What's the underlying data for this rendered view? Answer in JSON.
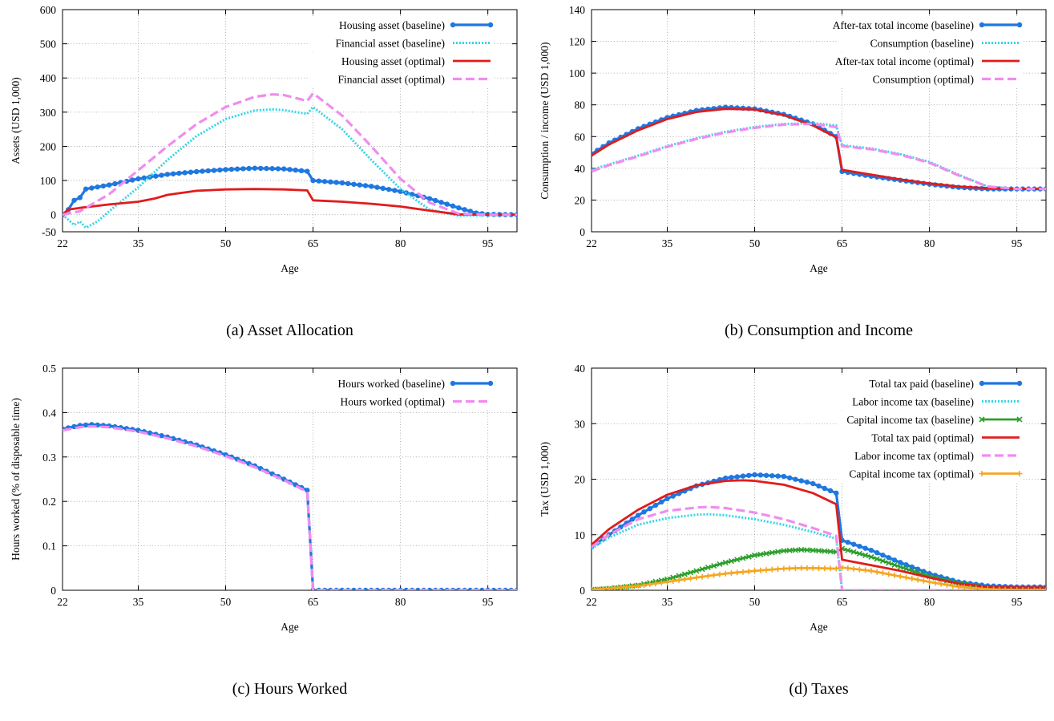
{
  "chart_data": [
    {
      "id": "a",
      "type": "line",
      "caption": "(a)  Asset Allocation",
      "xlabel": "Age",
      "ylabel": "Assets (USD 1,000)",
      "xlim": [
        22,
        100
      ],
      "ylim": [
        -50,
        600
      ],
      "xticks": [
        22,
        35,
        50,
        65,
        80,
        95
      ],
      "yticks": [
        -50,
        0,
        100,
        200,
        300,
        400,
        500,
        600
      ],
      "legend_position": "top-right",
      "grid": true,
      "series": [
        {
          "name": "Housing asset (baseline)",
          "color": "#1f77e0",
          "style": "solid-dots",
          "x": [
            22,
            23,
            24,
            25,
            26,
            30,
            35,
            40,
            45,
            50,
            55,
            60,
            64,
            65,
            70,
            75,
            80,
            85,
            90,
            93,
            95,
            100
          ],
          "y": [
            0,
            15,
            42,
            50,
            75,
            87,
            105,
            118,
            126,
            132,
            136,
            134,
            127,
            100,
            93,
            83,
            68,
            47,
            20,
            5,
            1,
            0
          ]
        },
        {
          "name": "Financial asset (baseline)",
          "color": "#33d6e6",
          "style": "dotted",
          "x": [
            22,
            23,
            24,
            25,
            26,
            28,
            30,
            35,
            40,
            45,
            50,
            55,
            58,
            60,
            64,
            65,
            70,
            75,
            80,
            85,
            90,
            95,
            100
          ],
          "y": [
            0,
            -15,
            -30,
            -20,
            -38,
            -20,
            10,
            80,
            160,
            230,
            280,
            305,
            308,
            306,
            295,
            315,
            250,
            160,
            75,
            15,
            -3,
            -2,
            0
          ]
        },
        {
          "name": "Housing asset (optimal)",
          "color": "#e21b1b",
          "style": "solid",
          "x": [
            22,
            23,
            25,
            30,
            35,
            38,
            40,
            45,
            50,
            55,
            60,
            64,
            65,
            70,
            75,
            80,
            85,
            90,
            95,
            100
          ],
          "y": [
            0,
            15,
            20,
            30,
            38,
            48,
            58,
            70,
            74,
            75,
            74,
            71,
            42,
            38,
            32,
            24,
            12,
            1,
            0,
            0
          ]
        },
        {
          "name": "Financial asset (optimal)",
          "color": "#f08cf0",
          "style": "dashed",
          "x": [
            22,
            25,
            30,
            35,
            40,
            45,
            50,
            55,
            58,
            60,
            64,
            65,
            70,
            75,
            80,
            85,
            90,
            95,
            100
          ],
          "y": [
            0,
            10,
            60,
            130,
            200,
            265,
            315,
            345,
            352,
            350,
            333,
            355,
            290,
            200,
            105,
            35,
            3,
            0,
            0
          ]
        }
      ]
    },
    {
      "id": "b",
      "type": "line",
      "caption": "(b)  Consumption and Income",
      "xlabel": "Age",
      "ylabel": "Consumption / income (USD 1,000)",
      "xlim": [
        22,
        100
      ],
      "ylim": [
        0,
        140
      ],
      "xticks": [
        22,
        35,
        50,
        65,
        80,
        95
      ],
      "yticks": [
        0,
        20,
        40,
        60,
        80,
        100,
        120,
        140
      ],
      "legend_position": "top-right",
      "grid": true,
      "series": [
        {
          "name": "After-tax total income (baseline)",
          "color": "#1f77e0",
          "style": "solid-dots",
          "x": [
            22,
            25,
            30,
            35,
            40,
            45,
            50,
            55,
            60,
            64,
            65,
            70,
            75,
            80,
            85,
            90,
            95,
            100
          ],
          "y": [
            49,
            56,
            65,
            72,
            76.5,
            78.5,
            77.5,
            74,
            68,
            60,
            38,
            35,
            32.5,
            30,
            28,
            27,
            27,
            27
          ]
        },
        {
          "name": "Consumption (baseline)",
          "color": "#33d6e6",
          "style": "dotted",
          "x": [
            22,
            25,
            30,
            35,
            40,
            45,
            50,
            55,
            60,
            64,
            65,
            70,
            75,
            80,
            85,
            90,
            95,
            100
          ],
          "y": [
            39,
            42.5,
            48,
            54,
            59,
            63,
            66,
            68,
            68.5,
            67,
            54.5,
            52.5,
            49,
            44,
            36,
            28.5,
            27,
            27
          ]
        },
        {
          "name": "After-tax total income (optimal)",
          "color": "#e21b1b",
          "style": "solid",
          "x": [
            22,
            25,
            30,
            35,
            40,
            45,
            50,
            55,
            60,
            64,
            65,
            70,
            75,
            80,
            85,
            90,
            95,
            100
          ],
          "y": [
            48,
            55,
            64,
            71,
            75.5,
            77.5,
            77,
            73.5,
            67,
            59.5,
            39,
            36,
            33,
            30.5,
            28.5,
            27.5,
            27,
            27
          ]
        },
        {
          "name": "Consumption (optimal)",
          "color": "#f08cf0",
          "style": "dashed",
          "x": [
            22,
            25,
            30,
            35,
            40,
            45,
            50,
            55,
            60,
            64,
            65,
            70,
            75,
            80,
            85,
            90,
            95,
            100
          ],
          "y": [
            38,
            42,
            47.5,
            53.5,
            58.5,
            62.5,
            65.5,
            67.5,
            68,
            66,
            54,
            52,
            48.5,
            43.5,
            35.5,
            28.5,
            27,
            27
          ]
        }
      ]
    },
    {
      "id": "c",
      "type": "line",
      "caption": "(c)  Hours Worked",
      "xlabel": "Age",
      "ylabel": "Hours worked (% of disposable time)",
      "xlim": [
        22,
        100
      ],
      "ylim": [
        0,
        0.5
      ],
      "xticks": [
        22,
        35,
        50,
        65,
        80,
        95
      ],
      "yticks": [
        0,
        0.1,
        0.2,
        0.3,
        0.4,
        0.5
      ],
      "legend_position": "top-right",
      "grid": true,
      "series": [
        {
          "name": "Hours worked (baseline)",
          "color": "#1f77e0",
          "style": "solid-dots",
          "x": [
            22,
            25,
            27,
            30,
            35,
            40,
            45,
            50,
            55,
            60,
            64,
            65,
            70,
            80,
            90,
            100
          ],
          "y": [
            0.363,
            0.371,
            0.373,
            0.37,
            0.36,
            0.345,
            0.327,
            0.305,
            0.28,
            0.25,
            0.225,
            0,
            0,
            0,
            0,
            0
          ]
        },
        {
          "name": "Hours worked (optimal)",
          "color": "#f08cf0",
          "style": "dashed",
          "x": [
            22,
            25,
            27,
            30,
            35,
            40,
            45,
            50,
            55,
            60,
            64,
            65,
            70,
            80,
            90,
            100
          ],
          "y": [
            0.36,
            0.367,
            0.369,
            0.367,
            0.357,
            0.342,
            0.324,
            0.302,
            0.277,
            0.248,
            0.222,
            0,
            0,
            0,
            0,
            0
          ]
        }
      ]
    },
    {
      "id": "d",
      "type": "line",
      "caption": "(d)  Taxes",
      "xlabel": "Age",
      "ylabel": "Tax (USD 1,000)",
      "xlim": [
        22,
        100
      ],
      "ylim": [
        0,
        40
      ],
      "xticks": [
        22,
        35,
        50,
        65,
        80,
        95
      ],
      "yticks": [
        0,
        10,
        20,
        30,
        40
      ],
      "legend_position": "top-right",
      "grid": true,
      "series": [
        {
          "name": "Total tax paid (baseline)",
          "color": "#1f77e0",
          "style": "solid-dots",
          "x": [
            22,
            25,
            30,
            35,
            40,
            45,
            50,
            55,
            60,
            64,
            65,
            70,
            75,
            80,
            85,
            90,
            95,
            100
          ],
          "y": [
            7.8,
            10,
            13.5,
            16.5,
            18.8,
            20.2,
            20.8,
            20.5,
            19.2,
            17.5,
            9,
            7.2,
            5,
            3,
            1.5,
            0.8,
            0.6,
            0.6
          ]
        },
        {
          "name": "Labor income tax (baseline)",
          "color": "#33d6e6",
          "style": "dotted",
          "x": [
            22,
            25,
            30,
            35,
            40,
            42,
            45,
            50,
            55,
            60,
            64,
            65,
            100
          ],
          "y": [
            7.5,
            9.5,
            11.8,
            13,
            13.6,
            13.7,
            13.5,
            12.8,
            11.8,
            10.5,
            9.3,
            0,
            0
          ]
        },
        {
          "name": "Capital income tax (baseline)",
          "color": "#2ca02c",
          "style": "solid-x",
          "x": [
            22,
            25,
            30,
            35,
            40,
            45,
            50,
            55,
            58,
            60,
            64,
            65,
            70,
            75,
            80,
            85,
            90,
            95,
            100
          ],
          "y": [
            0.1,
            0.3,
            0.9,
            2,
            3.5,
            5,
            6.3,
            7.1,
            7.3,
            7.2,
            6.9,
            7.5,
            6,
            4.2,
            2.5,
            1.2,
            0.4,
            0.1,
            0
          ]
        },
        {
          "name": "Total tax paid (optimal)",
          "color": "#e21b1b",
          "style": "solid",
          "x": [
            22,
            25,
            30,
            35,
            40,
            45,
            48,
            50,
            55,
            60,
            64,
            65,
            70,
            75,
            80,
            85,
            90,
            95,
            100
          ],
          "y": [
            8.2,
            11,
            14.5,
            17.2,
            18.9,
            19.7,
            19.8,
            19.7,
            19,
            17.5,
            15.5,
            5.5,
            4.5,
            3.5,
            2.3,
            1.2,
            0.6,
            0.5,
            0.5
          ]
        },
        {
          "name": "Labor income tax (optimal)",
          "color": "#f08cf0",
          "style": "dashed",
          "x": [
            22,
            25,
            30,
            35,
            40,
            42,
            45,
            50,
            55,
            60,
            64,
            65,
            100
          ],
          "y": [
            7.8,
            10,
            12.8,
            14.3,
            14.9,
            15,
            14.8,
            14,
            12.8,
            11.2,
            9.8,
            0,
            0
          ]
        },
        {
          "name": "Capital income tax (optimal)",
          "color": "#f5a623",
          "style": "solid-plus",
          "x": [
            22,
            25,
            30,
            35,
            40,
            45,
            50,
            55,
            58,
            60,
            64,
            65,
            70,
            75,
            80,
            85,
            90,
            95,
            100
          ],
          "y": [
            0.1,
            0.3,
            0.8,
            1.5,
            2.3,
            3,
            3.5,
            3.9,
            4,
            4,
            3.9,
            4.1,
            3.5,
            2.5,
            1.5,
            0.6,
            0.2,
            0.05,
            0
          ]
        }
      ]
    }
  ]
}
